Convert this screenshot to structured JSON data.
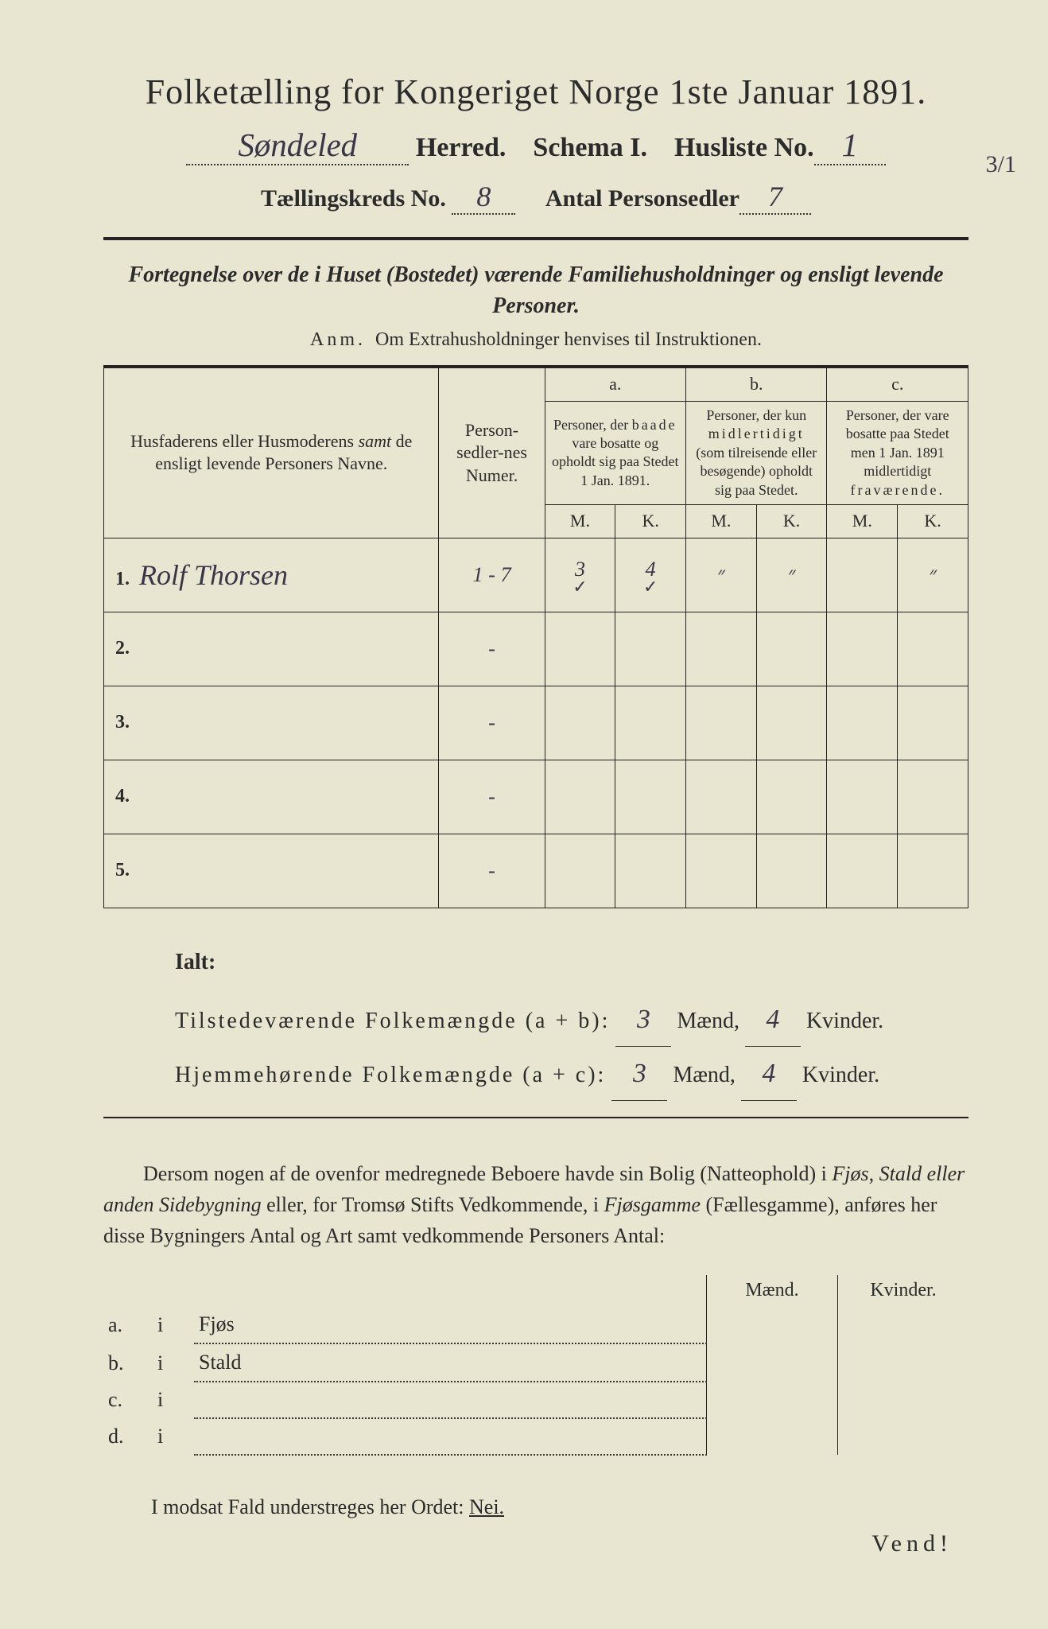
{
  "background_color": "#e8e5d0",
  "ink_color": "#2b2b2b",
  "handwriting_color": "#3a3548",
  "title": "Folketælling for Kongeriget Norge 1ste Januar 1891.",
  "herred_label": "Herred.",
  "herred_value": "Søndeled",
  "schema_label": "Schema I.",
  "husliste_label": "Husliste No.",
  "husliste_value": "1",
  "margin_note": "3/1",
  "kreds_label": "Tællingskreds No.",
  "kreds_value": "8",
  "antal_label": "Antal Personsedler",
  "antal_value": "7",
  "subtitle": "Fortegnelse over de i Huset (Bostedet) værende Familiehusholdninger og ensligt levende Personer.",
  "anm_label": "Anm.",
  "anm_text": "Om Extrahusholdninger henvises til Instruktionen.",
  "table": {
    "col_names_header": "Husfaderens eller Husmoderens samt de ensligt levende Personers Navne.",
    "col_names_header_italic_word": "samt",
    "col_num_header": "Person-sedler-nes Numer.",
    "col_a_label": "a.",
    "col_a_text": "Personer, der baade vare bosatte og opholdt sig paa Stedet 1 Jan. 1891.",
    "col_b_label": "b.",
    "col_b_text": "Personer, der kun midlertidigt (som tilreisende eller besøgende) opholdt sig paa Stedet.",
    "col_c_label": "c.",
    "col_c_text": "Personer, der vare bosatte paa Stedet men 1 Jan. 1891 midlertidigt fraværende.",
    "mk_m": "M.",
    "mk_k": "K.",
    "rows": [
      {
        "n": "1.",
        "name": "Rolf Thorsen",
        "num": "1 - 7",
        "a_m": "3",
        "a_k": "4",
        "b_m": "״",
        "b_k": "״",
        "c_m": "",
        "c_k": "״",
        "tick_a_m": "✓",
        "tick_a_k": "✓"
      },
      {
        "n": "2.",
        "name": "",
        "num": "-",
        "a_m": "",
        "a_k": "",
        "b_m": "",
        "b_k": "",
        "c_m": "",
        "c_k": ""
      },
      {
        "n": "3.",
        "name": "",
        "num": "-",
        "a_m": "",
        "a_k": "",
        "b_m": "",
        "b_k": "",
        "c_m": "",
        "c_k": ""
      },
      {
        "n": "4.",
        "name": "",
        "num": "-",
        "a_m": "",
        "a_k": "",
        "b_m": "",
        "b_k": "",
        "c_m": "",
        "c_k": ""
      },
      {
        "n": "5.",
        "name": "",
        "num": "-",
        "a_m": "",
        "a_k": "",
        "b_m": "",
        "b_k": "",
        "c_m": "",
        "c_k": ""
      }
    ]
  },
  "totals": {
    "ialt": "Ialt:",
    "line1_label": "Tilstedeværende Folkemængde (a + b):",
    "line2_label": "Hjemmehørende Folkemængde (a + c):",
    "maend": "Mænd,",
    "kvinder": "Kvinder.",
    "l1_m": "3",
    "l1_k": "4",
    "l2_m": "3",
    "l2_k": "4"
  },
  "para_text_1": "Dersom nogen af de ovenfor medregnede Beboere havde sin Bolig (Natteophold) i ",
  "para_italic_1": "Fjøs, Stald eller anden Sidebygning",
  "para_text_2": " eller, for Tromsø Stifts Vedkommende, i ",
  "para_italic_2": "Fjøsgamme",
  "para_text_3": " (Fællesgamme), anføres her disse Bygningers Antal og Art samt vedkommende Personers Antal:",
  "side_table": {
    "maend": "Mænd.",
    "kvinder": "Kvinder.",
    "rows": [
      {
        "key": "a.",
        "i": "i",
        "label": "Fjøs"
      },
      {
        "key": "b.",
        "i": "i",
        "label": "Stald"
      },
      {
        "key": "c.",
        "i": "i",
        "label": ""
      },
      {
        "key": "d.",
        "i": "i",
        "label": ""
      }
    ]
  },
  "nei_line_pre": "I modsat Fald understreges her Ordet: ",
  "nei_word": "Nei.",
  "vend": "Vend!"
}
